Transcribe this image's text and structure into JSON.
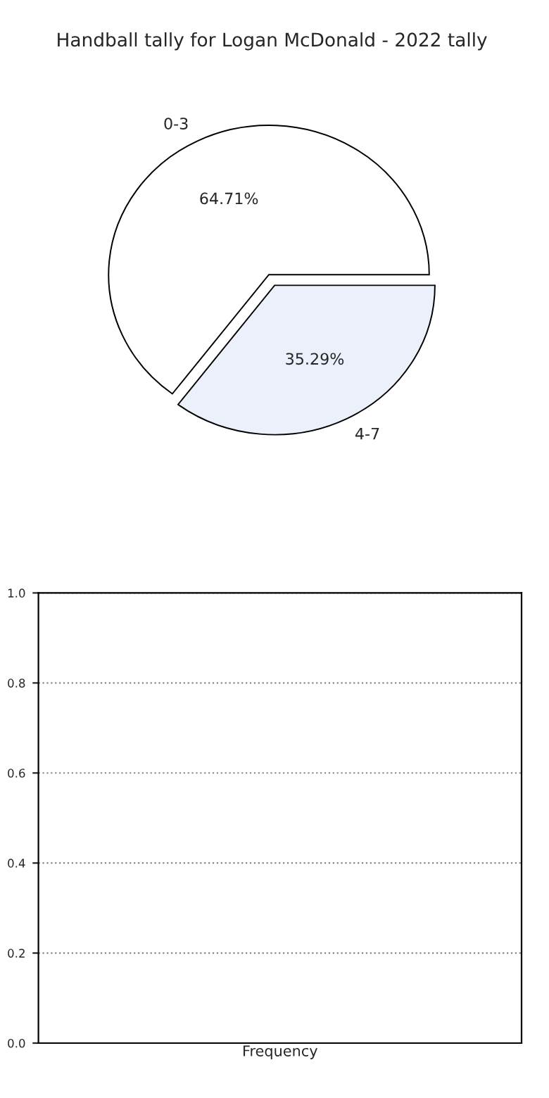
{
  "chart_data": [
    {
      "type": "pie",
      "title": "Handball tally for Logan McDonald - 2022 tally",
      "categories": [
        "0-3",
        "4-7"
      ],
      "values": [
        64.71,
        35.29
      ],
      "colors": [
        "#ffffff",
        "#ebf0fb"
      ],
      "value_labels": [
        "64.71%",
        "35.29%"
      ]
    },
    {
      "type": "bar",
      "xlabel": "Frequency",
      "categories": [
        null
      ],
      "values": [
        0
      ],
      "ylim": [
        0,
        1.0
      ],
      "yticks": [
        {
          "value": 0,
          "label": "0.0"
        },
        {
          "value": 0.2,
          "label": "0.2"
        },
        {
          "value": 0.4,
          "label": "0.4"
        },
        {
          "value": 0.6,
          "label": "0.6"
        },
        {
          "value": 0.8,
          "label": "0.8"
        },
        {
          "value": 1.0,
          "label": "1.0"
        }
      ],
      "grid": "y",
      "tick_labels": "y"
    }
  ]
}
